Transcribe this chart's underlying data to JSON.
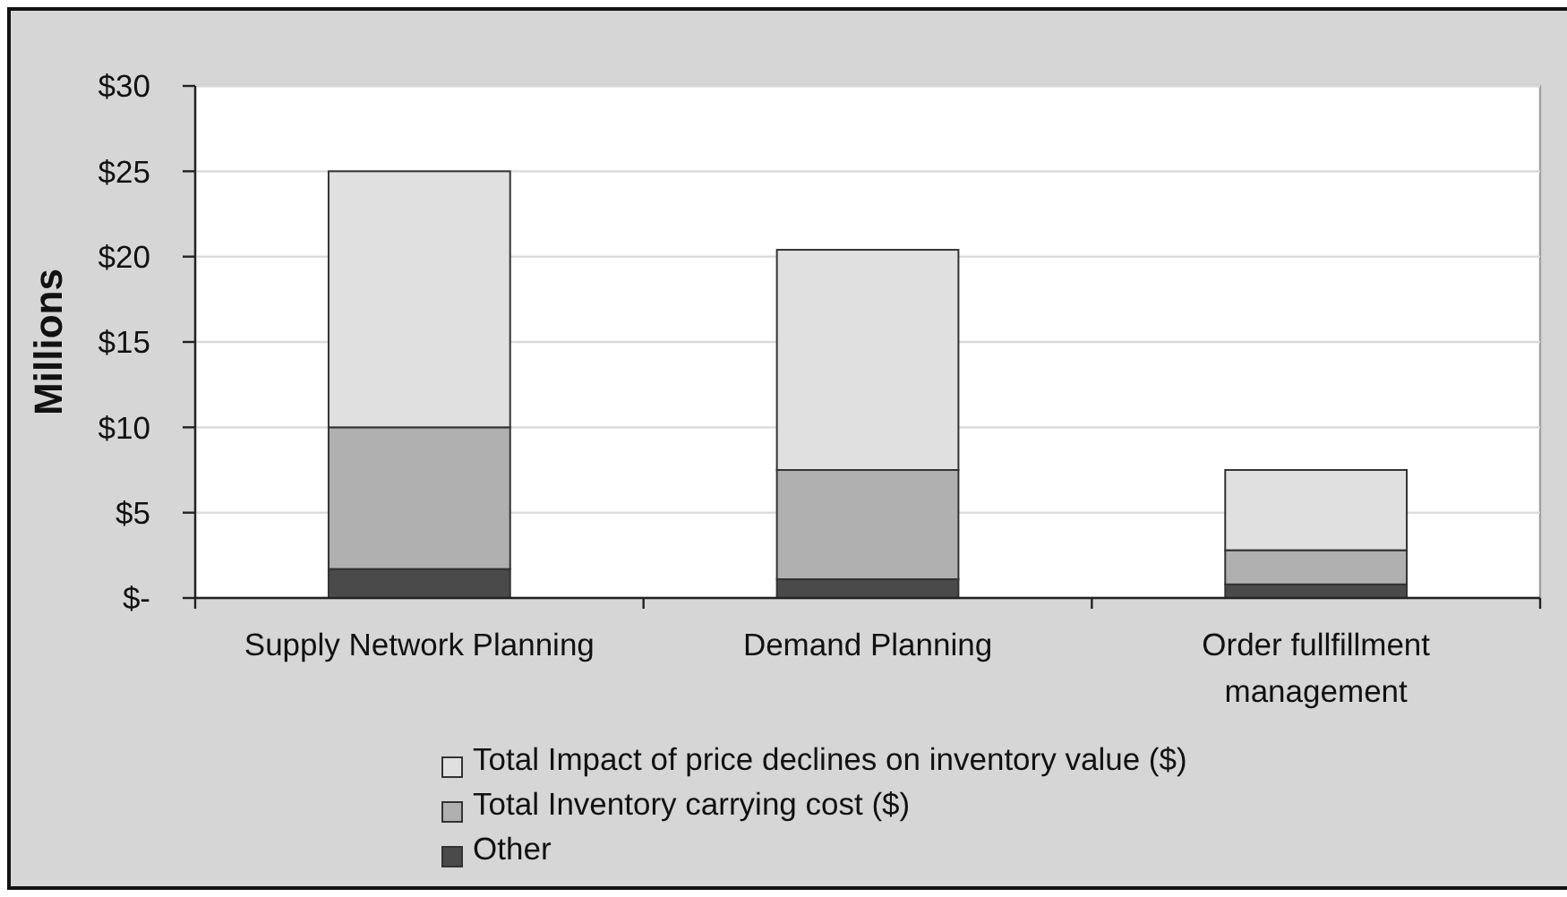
{
  "chart_data": {
    "type": "bar",
    "stacked": true,
    "ylabel": "Millions",
    "categories": [
      "Supply Network Planning",
      "Demand Planning",
      "Order fullfillment management"
    ],
    "series": [
      {
        "name": "Other",
        "color": "#4a4a4a",
        "values": [
          1.7,
          1.1,
          0.8
        ]
      },
      {
        "name": "Total Inventory carrying cost ($)",
        "color": "#b0b0b0",
        "values": [
          8.3,
          6.4,
          2.0
        ]
      },
      {
        "name": "Total Impact of price declines on inventory value ($)",
        "color": "#e0e0e0",
        "values": [
          15.0,
          12.9,
          4.7
        ]
      }
    ],
    "ylim": [
      0,
      30
    ],
    "yticks": [
      {
        "value": 0,
        "label": "$-"
      },
      {
        "value": 5,
        "label": "$5"
      },
      {
        "value": 10,
        "label": "$10"
      },
      {
        "value": 15,
        "label": "$15"
      },
      {
        "value": 20,
        "label": "$20"
      },
      {
        "value": 25,
        "label": "$25"
      },
      {
        "value": 30,
        "label": "$30"
      }
    ],
    "grid": "y",
    "legend": "bottom"
  }
}
